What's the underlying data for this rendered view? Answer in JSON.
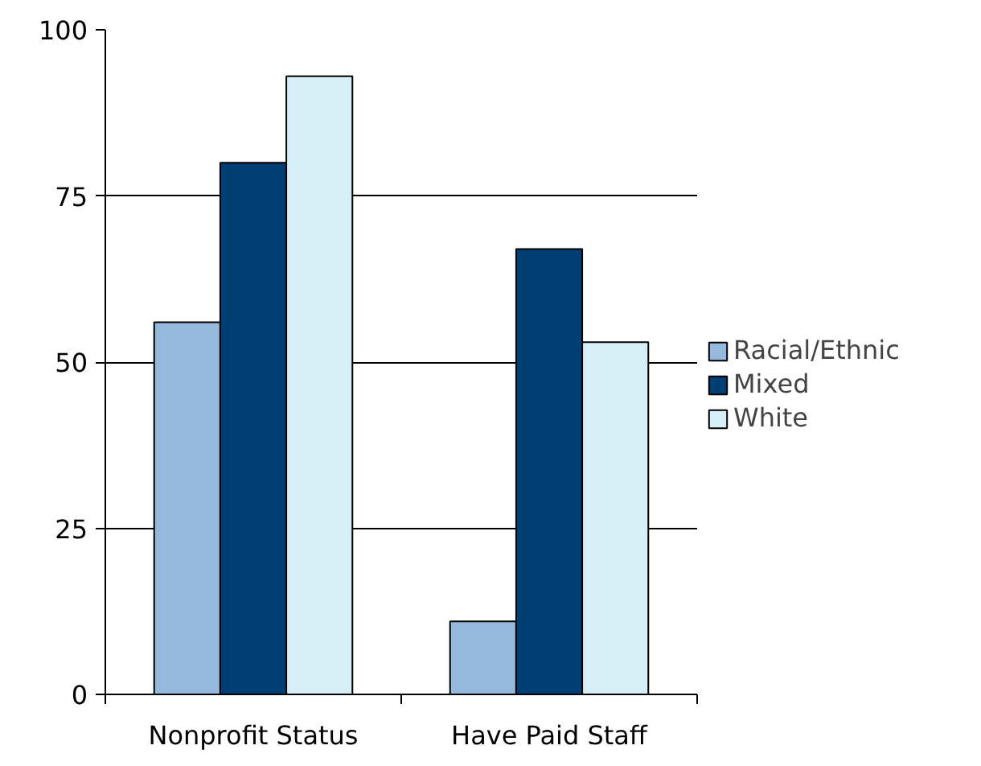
{
  "chart_data": {
    "type": "bar",
    "categories": [
      "Nonprofit Status",
      "Have Paid Staff"
    ],
    "series": [
      {
        "name": "Racial/Ethnic",
        "color": "#95b9dc",
        "values": [
          56,
          11
        ]
      },
      {
        "name": "Mixed",
        "color": "#003f73",
        "values": [
          80,
          67
        ]
      },
      {
        "name": "White",
        "color": "#d6eef5",
        "values": [
          93,
          53
        ]
      }
    ],
    "ylim": [
      0,
      100
    ],
    "yticks": [
      0,
      25,
      50,
      75,
      100
    ],
    "grid": "y",
    "legend": "right"
  }
}
